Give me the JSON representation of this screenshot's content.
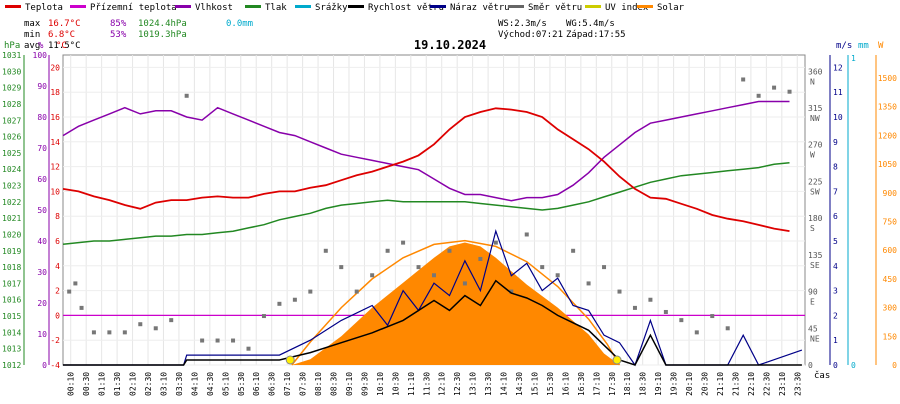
{
  "chart_data": {
    "type": "line",
    "title": "19.10.2024",
    "legend": [
      {
        "name": "Teplota",
        "color": "#dd0000"
      },
      {
        "name": "Přízemní teplota",
        "color": "#cc00cc"
      },
      {
        "name": "Vlhkost",
        "color": "#8800aa"
      },
      {
        "name": "Tlak",
        "color": "#228822"
      },
      {
        "name": "Srážky",
        "color": "#00aacc"
      },
      {
        "name": "Rychlost větru",
        "color": "#000000"
      },
      {
        "name": "Náraz větru",
        "color": "#000088"
      },
      {
        "name": "Směr větru",
        "color": "#666666"
      },
      {
        "name": "UV index",
        "color": "#cccc00"
      },
      {
        "name": "Solar",
        "color": "#ff8800"
      }
    ],
    "stats": {
      "max": {
        "label": "max",
        "temp": "16.7°C",
        "hum": "85%",
        "press": "1024.4hPa",
        "rain": "0.0mm"
      },
      "min": {
        "label": "min",
        "temp": "6.8°C",
        "hum": "53%",
        "press": "1019.3hPa"
      },
      "avg": {
        "label": "avg",
        "temp": "11.5°C"
      }
    },
    "wind_info": {
      "ws": "WS:2.3m/s",
      "wg": "WG:5.4m/s",
      "sunrise": "Východ:07:21",
      "sunset": "Západ:17:55"
    },
    "axis_labels": {
      "press": "hPa",
      "hum": "%",
      "temp": "°C",
      "wind": "m/s",
      "rain": "mm",
      "solar": "W",
      "time": "čas"
    },
    "press_ticks": [
      "1031",
      "1030",
      "1029",
      "1028",
      "1027",
      "1026",
      "1025",
      "1024",
      "1023",
      "1022",
      "1021",
      "1020",
      "1019",
      "1018",
      "1017",
      "1016",
      "1015",
      "1014",
      "1013",
      "1012"
    ],
    "hum_ticks": [
      "100",
      "90",
      "80",
      "70",
      "60",
      "50",
      "40",
      "30",
      "20",
      "10",
      "0"
    ],
    "temp_ticks": [
      "20",
      "18",
      "16",
      "14",
      "12",
      "10",
      "8",
      "6",
      "4",
      "2",
      "0",
      "-2",
      "-4"
    ],
    "dir_ticks": [
      {
        "deg": "360",
        "dir": "N"
      },
      {
        "deg": "315",
        "dir": "NW"
      },
      {
        "deg": "270",
        "dir": "W"
      },
      {
        "deg": "225",
        "dir": "SW"
      },
      {
        "deg": "180",
        "dir": "S"
      },
      {
        "deg": "135",
        "dir": "SE"
      },
      {
        "deg": "90",
        "dir": "E"
      },
      {
        "deg": "45",
        "dir": "NE"
      },
      {
        "deg": "0",
        "dir": ""
      }
    ],
    "wind_ticks": [
      "12",
      "11",
      "10",
      "9",
      "8",
      "7",
      "6",
      "5",
      "4",
      "3",
      "2",
      "1",
      "0"
    ],
    "rain_ticks": [
      "1",
      "0"
    ],
    "solar_ticks": [
      "1500",
      "1350",
      "1200",
      "1050",
      "900",
      "750",
      "600",
      "450",
      "300",
      "150",
      "0"
    ],
    "x_ticks": [
      "00:10",
      "00:30",
      "01:10",
      "01:30",
      "02:10",
      "02:30",
      "03:10",
      "03:30",
      "04:10",
      "04:30",
      "05:10",
      "05:30",
      "06:10",
      "06:30",
      "07:10",
      "07:30",
      "08:10",
      "08:30",
      "09:10",
      "09:30",
      "10:10",
      "10:30",
      "11:10",
      "11:30",
      "12:10",
      "12:30",
      "13:10",
      "13:30",
      "14:10",
      "14:30",
      "15:10",
      "15:30",
      "16:10",
      "16:30",
      "17:10",
      "17:30",
      "18:10",
      "18:30",
      "19:10",
      "19:30",
      "20:10",
      "20:30",
      "21:10",
      "21:30",
      "22:10",
      "22:30",
      "23:10",
      "23:30"
    ],
    "temperature": [
      [
        0,
        10.2
      ],
      [
        0.5,
        10.0
      ],
      [
        1,
        9.6
      ],
      [
        1.5,
        9.3
      ],
      [
        2,
        8.9
      ],
      [
        2.5,
        8.6
      ],
      [
        3,
        9.1
      ],
      [
        3.5,
        9.3
      ],
      [
        4,
        9.3
      ],
      [
        4.5,
        9.5
      ],
      [
        5,
        9.6
      ],
      [
        5.5,
        9.5
      ],
      [
        6,
        9.5
      ],
      [
        6.5,
        9.8
      ],
      [
        7,
        10.0
      ],
      [
        7.5,
        10.0
      ],
      [
        8,
        10.3
      ],
      [
        8.5,
        10.5
      ],
      [
        9,
        10.9
      ],
      [
        9.5,
        11.3
      ],
      [
        10,
        11.6
      ],
      [
        10.5,
        12.0
      ],
      [
        11,
        12.4
      ],
      [
        11.5,
        12.9
      ],
      [
        12,
        13.8
      ],
      [
        12.5,
        15.0
      ],
      [
        13,
        16.0
      ],
      [
        13.5,
        16.4
      ],
      [
        14,
        16.7
      ],
      [
        14.5,
        16.6
      ],
      [
        15,
        16.4
      ],
      [
        15.5,
        16.0
      ],
      [
        16,
        15.0
      ],
      [
        16.5,
        14.2
      ],
      [
        17,
        13.4
      ],
      [
        17.5,
        12.4
      ],
      [
        18,
        11.2
      ],
      [
        18.5,
        10.2
      ],
      [
        19,
        9.5
      ],
      [
        19.5,
        9.4
      ],
      [
        20,
        9.0
      ],
      [
        20.5,
        8.6
      ],
      [
        21,
        8.1
      ],
      [
        21.5,
        7.8
      ],
      [
        22,
        7.6
      ],
      [
        22.5,
        7.3
      ],
      [
        23,
        7.0
      ],
      [
        23.5,
        6.8
      ]
    ],
    "humidity": [
      [
        0,
        74
      ],
      [
        0.5,
        77
      ],
      [
        1,
        79
      ],
      [
        1.5,
        81
      ],
      [
        2,
        83
      ],
      [
        2.5,
        81
      ],
      [
        3,
        82
      ],
      [
        3.5,
        82
      ],
      [
        4,
        80
      ],
      [
        4.5,
        79
      ],
      [
        5,
        83
      ],
      [
        5.5,
        81
      ],
      [
        6,
        79
      ],
      [
        6.5,
        77
      ],
      [
        7,
        75
      ],
      [
        7.5,
        74
      ],
      [
        8,
        72
      ],
      [
        8.5,
        70
      ],
      [
        9,
        68
      ],
      [
        9.5,
        67
      ],
      [
        10,
        66
      ],
      [
        10.5,
        65
      ],
      [
        11,
        64
      ],
      [
        11.5,
        63
      ],
      [
        12,
        60
      ],
      [
        12.5,
        57
      ],
      [
        13,
        55
      ],
      [
        13.5,
        55
      ],
      [
        14,
        54
      ],
      [
        14.5,
        53
      ],
      [
        15,
        54
      ],
      [
        15.5,
        54
      ],
      [
        16,
        55
      ],
      [
        16.5,
        58
      ],
      [
        17,
        62
      ],
      [
        17.5,
        67
      ],
      [
        18,
        71
      ],
      [
        18.5,
        75
      ],
      [
        19,
        78
      ],
      [
        19.5,
        79
      ],
      [
        20,
        80
      ],
      [
        20.5,
        81
      ],
      [
        21,
        82
      ],
      [
        21.5,
        83
      ],
      [
        22,
        84
      ],
      [
        22.5,
        85
      ],
      [
        23,
        85
      ],
      [
        23.5,
        85
      ]
    ],
    "pressure": [
      [
        0,
        1019.4
      ],
      [
        0.5,
        1019.5
      ],
      [
        1,
        1019.6
      ],
      [
        1.5,
        1019.6
      ],
      [
        2,
        1019.7
      ],
      [
        2.5,
        1019.8
      ],
      [
        3,
        1019.9
      ],
      [
        3.5,
        1019.9
      ],
      [
        4,
        1020.0
      ],
      [
        4.5,
        1020.0
      ],
      [
        5,
        1020.1
      ],
      [
        5.5,
        1020.2
      ],
      [
        6,
        1020.4
      ],
      [
        6.5,
        1020.6
      ],
      [
        7,
        1020.9
      ],
      [
        7.5,
        1021.1
      ],
      [
        8,
        1021.3
      ],
      [
        8.5,
        1021.6
      ],
      [
        9,
        1021.8
      ],
      [
        9.5,
        1021.9
      ],
      [
        10,
        1022.0
      ],
      [
        10.5,
        1022.1
      ],
      [
        11,
        1022.0
      ],
      [
        11.5,
        1022.0
      ],
      [
        12,
        1022.0
      ],
      [
        12.5,
        1022.0
      ],
      [
        13,
        1022.0
      ],
      [
        13.5,
        1021.9
      ],
      [
        14,
        1021.8
      ],
      [
        14.5,
        1021.7
      ],
      [
        15,
        1021.6
      ],
      [
        15.5,
        1021.5
      ],
      [
        16,
        1021.6
      ],
      [
        16.5,
        1021.8
      ],
      [
        17,
        1022.0
      ],
      [
        17.5,
        1022.3
      ],
      [
        18,
        1022.6
      ],
      [
        18.5,
        1022.9
      ],
      [
        19,
        1023.2
      ],
      [
        19.5,
        1023.4
      ],
      [
        20,
        1023.6
      ],
      [
        20.5,
        1023.7
      ],
      [
        21,
        1023.8
      ],
      [
        21.5,
        1023.9
      ],
      [
        22,
        1024.0
      ],
      [
        22.5,
        1024.1
      ],
      [
        23,
        1024.3
      ],
      [
        23.5,
        1024.4
      ]
    ],
    "wind_speed": [
      [
        0,
        0
      ],
      [
        3.9,
        0
      ],
      [
        4,
        0.2
      ],
      [
        7,
        0.2
      ],
      [
        8,
        0.5
      ],
      [
        9,
        0.9
      ],
      [
        10,
        1.3
      ],
      [
        11,
        1.8
      ],
      [
        12,
        2.6
      ],
      [
        12.5,
        2.2
      ],
      [
        13,
        2.8
      ],
      [
        13.5,
        2.4
      ],
      [
        14,
        3.4
      ],
      [
        14.5,
        2.9
      ],
      [
        15,
        2.7
      ],
      [
        15.5,
        2.4
      ],
      [
        16,
        2.0
      ],
      [
        16.5,
        1.7
      ],
      [
        17,
        1.4
      ],
      [
        17.5,
        0.8
      ],
      [
        18,
        0.2
      ],
      [
        18.5,
        0
      ],
      [
        19,
        1.2
      ],
      [
        19.5,
        0
      ],
      [
        23.9,
        0
      ]
    ],
    "wind_gust": [
      [
        0,
        0
      ],
      [
        3.9,
        0
      ],
      [
        4,
        0.4
      ],
      [
        7,
        0.4
      ],
      [
        8,
        1.0
      ],
      [
        9,
        1.8
      ],
      [
        10,
        2.4
      ],
      [
        10.5,
        1.6
      ],
      [
        11,
        3.0
      ],
      [
        11.5,
        2.2
      ],
      [
        12,
        3.3
      ],
      [
        12.5,
        2.8
      ],
      [
        13,
        4.2
      ],
      [
        13.5,
        3.0
      ],
      [
        14,
        5.4
      ],
      [
        14.5,
        3.6
      ],
      [
        15,
        4.1
      ],
      [
        15.5,
        3.0
      ],
      [
        16,
        3.5
      ],
      [
        16.5,
        2.4
      ],
      [
        17,
        2.2
      ],
      [
        17.5,
        1.2
      ],
      [
        18,
        0.9
      ],
      [
        18.5,
        0
      ],
      [
        19,
        1.8
      ],
      [
        19.5,
        0
      ],
      [
        21.5,
        0
      ],
      [
        22,
        1.2
      ],
      [
        22.5,
        0
      ],
      [
        23.9,
        0.6
      ]
    ],
    "wind_dir": [
      [
        0.2,
        90
      ],
      [
        0.4,
        100
      ],
      [
        0.6,
        70
      ],
      [
        1,
        40
      ],
      [
        1.5,
        40
      ],
      [
        2,
        40
      ],
      [
        2.5,
        50
      ],
      [
        3,
        45
      ],
      [
        3.5,
        55
      ],
      [
        4,
        330
      ],
      [
        4.5,
        30
      ],
      [
        5,
        30
      ],
      [
        5.5,
        30
      ],
      [
        6,
        20
      ],
      [
        6.5,
        60
      ],
      [
        7,
        75
      ],
      [
        7.5,
        80
      ],
      [
        8,
        90
      ],
      [
        8.5,
        140
      ],
      [
        9,
        120
      ],
      [
        9.5,
        90
      ],
      [
        10,
        110
      ],
      [
        10.5,
        140
      ],
      [
        11,
        150
      ],
      [
        11.5,
        120
      ],
      [
        12,
        110
      ],
      [
        12.5,
        140
      ],
      [
        13,
        100
      ],
      [
        13.5,
        130
      ],
      [
        14,
        150
      ],
      [
        14.5,
        90
      ],
      [
        15,
        160
      ],
      [
        15.5,
        120
      ],
      [
        16,
        110
      ],
      [
        16.5,
        140
      ],
      [
        17,
        100
      ],
      [
        17.5,
        120
      ],
      [
        18,
        90
      ],
      [
        18.5,
        70
      ],
      [
        19,
        80
      ],
      [
        19.5,
        65
      ],
      [
        20,
        55
      ],
      [
        20.5,
        40
      ],
      [
        21,
        60
      ],
      [
        21.5,
        45
      ],
      [
        22,
        350
      ],
      [
        22.5,
        330
      ],
      [
        23,
        340
      ],
      [
        23.5,
        335
      ]
    ],
    "solar": [
      [
        0,
        0
      ],
      [
        7.4,
        0
      ],
      [
        8,
        30
      ],
      [
        9,
        150
      ],
      [
        10,
        300
      ],
      [
        11,
        430
      ],
      [
        12,
        560
      ],
      [
        12.5,
        620
      ],
      [
        13,
        640
      ],
      [
        13.5,
        620
      ],
      [
        14,
        560
      ],
      [
        15,
        420
      ],
      [
        16,
        300
      ],
      [
        17,
        160
      ],
      [
        17.5,
        60
      ],
      [
        18,
        0
      ],
      [
        23.9,
        0
      ]
    ],
    "solar_theory": [
      [
        7.4,
        0
      ],
      [
        8,
        120
      ],
      [
        9,
        300
      ],
      [
        10,
        450
      ],
      [
        11,
        560
      ],
      [
        12,
        630
      ],
      [
        13,
        650
      ],
      [
        14,
        620
      ],
      [
        15,
        540
      ],
      [
        16,
        410
      ],
      [
        17,
        240
      ],
      [
        17.6,
        110
      ],
      [
        18,
        0
      ]
    ],
    "ground_temp_line": 0.0,
    "ranges": {
      "press": [
        1012,
        1031
      ],
      "hum": [
        0,
        100
      ],
      "temp": [
        -4,
        21
      ],
      "wind": [
        0,
        12.5
      ],
      "dir": [
        0,
        380
      ],
      "solar": [
        0,
        1620
      ],
      "time": [
        0,
        24
      ]
    }
  }
}
